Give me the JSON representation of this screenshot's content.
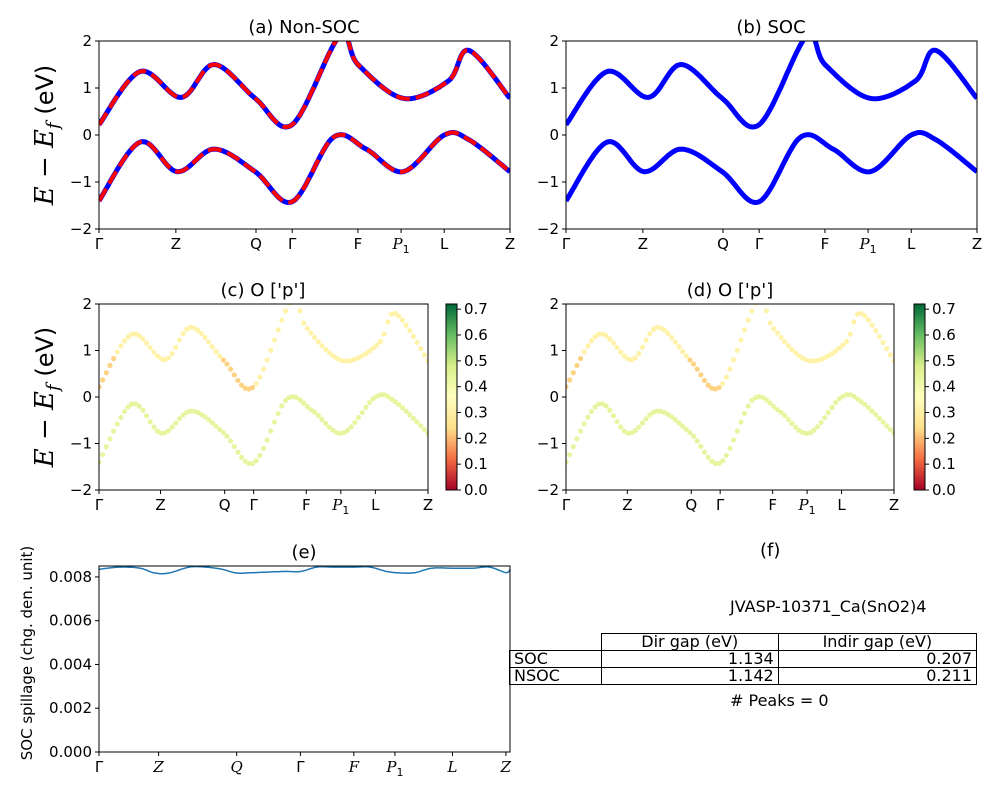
{
  "chart_data": [
    {
      "panel": "a",
      "type": "line",
      "title": "(a) Non-SOC",
      "ylabel": "E − E_f (eV)",
      "ylim": [
        -2,
        2
      ],
      "yticks": [
        "−2",
        "−1",
        "0",
        "1",
        "2"
      ],
      "xticks": [
        {
          "label": "Γ",
          "x": 0.0
        },
        {
          "label": "Z",
          "x": 0.187
        },
        {
          "label": "Q",
          "x": 0.382
        },
        {
          "label": "Γ",
          "x": 0.47
        },
        {
          "label": "F",
          "x": 0.63
        },
        {
          "label": "P",
          "sub": "1",
          "x": 0.735
        },
        {
          "label": "L",
          "x": 0.84
        },
        {
          "label": "Z",
          "x": 1.0
        }
      ],
      "series": [
        {
          "color": "#0000ff",
          "style": "solid",
          "x": [
            0,
            0.1,
            0.2,
            0.28,
            0.38,
            0.47,
            0.585,
            0.63,
            0.74,
            0.85,
            0.9,
            1.0
          ],
          "values": [
            0.22,
            1.35,
            0.8,
            1.5,
            0.78,
            0.22,
            2.1,
            1.5,
            0.78,
            1.15,
            1.8,
            0.78
          ]
        },
        {
          "color": "#ff0000",
          "style": "dashed",
          "x": [
            0,
            0.1,
            0.2,
            0.28,
            0.38,
            0.47,
            0.585,
            0.63,
            0.74,
            0.85,
            0.9,
            1.0
          ],
          "values": [
            0.22,
            1.35,
            0.8,
            1.5,
            0.78,
            0.22,
            2.1,
            1.5,
            0.78,
            1.15,
            1.8,
            0.78
          ]
        },
        {
          "color": "#0000ff",
          "style": "solid",
          "x": [
            0,
            0.1,
            0.19,
            0.28,
            0.38,
            0.47,
            0.57,
            0.65,
            0.74,
            0.84,
            0.9,
            1.0
          ],
          "values": [
            -1.4,
            -0.15,
            -0.78,
            -0.3,
            -0.78,
            -1.42,
            -0.05,
            -0.3,
            -0.78,
            0.0,
            -0.1,
            -0.78
          ]
        },
        {
          "color": "#ff0000",
          "style": "dashed",
          "x": [
            0,
            0.1,
            0.19,
            0.28,
            0.38,
            0.47,
            0.57,
            0.65,
            0.74,
            0.84,
            0.9,
            1.0
          ],
          "values": [
            -1.4,
            -0.15,
            -0.78,
            -0.3,
            -0.78,
            -1.42,
            -0.05,
            -0.3,
            -0.78,
            0.0,
            -0.1,
            -0.78
          ]
        }
      ]
    },
    {
      "panel": "b",
      "type": "line",
      "title": "(b) SOC",
      "ylim": [
        -2,
        2
      ],
      "yticks": [
        "−2",
        "−1",
        "0",
        "1",
        "2"
      ],
      "xticks": [
        {
          "label": "Γ",
          "x": 0.0
        },
        {
          "label": "Z",
          "x": 0.187
        },
        {
          "label": "Q",
          "x": 0.382
        },
        {
          "label": "Γ",
          "x": 0.47
        },
        {
          "label": "F",
          "x": 0.63
        },
        {
          "label": "P",
          "sub": "1",
          "x": 0.735
        },
        {
          "label": "L",
          "x": 0.84
        },
        {
          "label": "Z",
          "x": 1.0
        }
      ],
      "series": [
        {
          "color": "#0000ff",
          "style": "solid",
          "x": [
            0,
            0.1,
            0.2,
            0.28,
            0.38,
            0.47,
            0.585,
            0.63,
            0.74,
            0.85,
            0.9,
            1.0
          ],
          "values": [
            0.22,
            1.35,
            0.8,
            1.5,
            0.78,
            0.22,
            2.1,
            1.5,
            0.78,
            1.15,
            1.8,
            0.78
          ]
        },
        {
          "color": "#0000ff",
          "style": "solid",
          "x": [
            0,
            0.1,
            0.19,
            0.28,
            0.38,
            0.47,
            0.57,
            0.65,
            0.74,
            0.84,
            0.9,
            1.0
          ],
          "values": [
            -1.4,
            -0.15,
            -0.78,
            -0.3,
            -0.78,
            -1.42,
            -0.05,
            -0.3,
            -0.78,
            0.0,
            -0.1,
            -0.78
          ]
        }
      ]
    },
    {
      "panel": "c",
      "type": "scatter",
      "title": "(c)  O ['p']",
      "ylabel": "E − E_f (eV)",
      "ylim": [
        -2,
        2
      ],
      "yticks": [
        "−2",
        "−1",
        "0",
        "1",
        "2"
      ],
      "xticks": [
        {
          "label": "Γ",
          "x": 0.0
        },
        {
          "label": "Z",
          "x": 0.187
        },
        {
          "label": "Q",
          "x": 0.382
        },
        {
          "label": "Γ",
          "x": 0.47
        },
        {
          "label": "F",
          "x": 0.63
        },
        {
          "label": "P",
          "sub": "1",
          "x": 0.735
        },
        {
          "label": "L",
          "x": 0.84
        },
        {
          "label": "Z",
          "x": 1.0
        }
      ],
      "colorbar": {
        "min": 0.0,
        "max": 0.7,
        "ticks": [
          "0.0",
          "0.1",
          "0.2",
          "0.3",
          "0.4",
          "0.5",
          "0.6",
          "0.7"
        ]
      },
      "series": [
        {
          "weight": 0.3,
          "x": [
            0,
            0.1,
            0.2,
            0.28,
            0.38,
            0.47,
            0.585,
            0.63,
            0.74,
            0.85,
            0.9,
            1.0
          ],
          "values": [
            0.22,
            1.35,
            0.8,
            1.5,
            0.78,
            0.22,
            2.1,
            1.5,
            0.78,
            1.15,
            1.8,
            0.78
          ]
        },
        {
          "weight": 0.42,
          "x": [
            0,
            0.1,
            0.19,
            0.28,
            0.38,
            0.47,
            0.57,
            0.65,
            0.74,
            0.84,
            0.9,
            1.0
          ],
          "values": [
            -1.4,
            -0.15,
            -0.78,
            -0.3,
            -0.78,
            -1.42,
            -0.05,
            -0.3,
            -0.78,
            0.0,
            -0.1,
            -0.78
          ]
        }
      ]
    },
    {
      "panel": "d",
      "type": "scatter",
      "title": "(d) O ['p']",
      "ylim": [
        -2,
        2
      ],
      "yticks": [
        "−2",
        "−1",
        "0",
        "1",
        "2"
      ],
      "xticks": [
        {
          "label": "Γ",
          "x": 0.0
        },
        {
          "label": "Z",
          "x": 0.187
        },
        {
          "label": "Q",
          "x": 0.382
        },
        {
          "label": "Γ",
          "x": 0.47
        },
        {
          "label": "F",
          "x": 0.63
        },
        {
          "label": "P",
          "sub": "1",
          "x": 0.735
        },
        {
          "label": "L",
          "x": 0.84
        },
        {
          "label": "Z",
          "x": 1.0
        }
      ],
      "colorbar": {
        "min": 0.0,
        "max": 0.7,
        "ticks": [
          "0.0",
          "0.1",
          "0.2",
          "0.3",
          "0.4",
          "0.5",
          "0.6",
          "0.7"
        ]
      },
      "series": [
        {
          "weight": 0.3,
          "x": [
            0,
            0.1,
            0.2,
            0.28,
            0.38,
            0.47,
            0.585,
            0.63,
            0.74,
            0.85,
            0.9,
            1.0
          ],
          "values": [
            0.22,
            1.35,
            0.8,
            1.5,
            0.78,
            0.22,
            2.1,
            1.5,
            0.78,
            1.15,
            1.8,
            0.78
          ]
        },
        {
          "weight": 0.42,
          "x": [
            0,
            0.1,
            0.19,
            0.28,
            0.38,
            0.47,
            0.57,
            0.65,
            0.74,
            0.84,
            0.9,
            1.0
          ],
          "values": [
            -1.4,
            -0.15,
            -0.78,
            -0.3,
            -0.78,
            -1.42,
            -0.05,
            -0.3,
            -0.78,
            0.0,
            -0.1,
            -0.78
          ]
        }
      ]
    },
    {
      "panel": "e",
      "type": "line",
      "title": "(e)",
      "ylabel": "SOC spillage (chg. den. unit)",
      "ylim": [
        0,
        0.0085
      ],
      "yticks": [
        "0.000",
        "0.002",
        "0.004",
        "0.006",
        "0.008"
      ],
      "ytick_values": [
        0,
        0.002,
        0.004,
        0.006,
        0.008
      ],
      "xticks": [
        {
          "label": "Γ",
          "x": 0.0,
          "italic": false
        },
        {
          "label": "Z",
          "x": 0.145,
          "italic": true
        },
        {
          "label": "Q",
          "x": 0.335,
          "italic": true
        },
        {
          "label": "Γ",
          "x": 0.49,
          "italic": false
        },
        {
          "label": "F",
          "x": 0.62,
          "italic": true
        },
        {
          "label": "P",
          "sub": "1",
          "x": 0.72,
          "italic": true
        },
        {
          "label": "L",
          "x": 0.86,
          "italic": true
        },
        {
          "label": "Z",
          "x": 0.99,
          "italic": true
        }
      ],
      "series": [
        {
          "color": "#1f77b4",
          "x": [
            0,
            0.05,
            0.1,
            0.135,
            0.17,
            0.22,
            0.26,
            0.3,
            0.335,
            0.38,
            0.45,
            0.49,
            0.53,
            0.57,
            0.62,
            0.66,
            0.7,
            0.735,
            0.77,
            0.81,
            0.86,
            0.91,
            0.95,
            0.99,
            1.0
          ],
          "values": [
            0.00835,
            0.00845,
            0.0084,
            0.00818,
            0.00818,
            0.00845,
            0.00845,
            0.00835,
            0.00818,
            0.0082,
            0.00825,
            0.00825,
            0.00845,
            0.00845,
            0.00845,
            0.00845,
            0.00825,
            0.00818,
            0.0082,
            0.0084,
            0.0084,
            0.0084,
            0.00845,
            0.0082,
            0.00835
          ]
        }
      ]
    }
  ],
  "panel_f": {
    "title": "(f)",
    "material": "JVASP-10371_Ca(SnO2)4",
    "table": {
      "headers": [
        "Dir gap (eV)",
        "Indir gap (eV)"
      ],
      "rows": [
        {
          "label": "SOC",
          "dir": "1.134",
          "indir": "0.207"
        },
        {
          "label": "NSOC",
          "dir": "1.142",
          "indir": "0.211"
        }
      ]
    },
    "peaks": "# Peaks = 0"
  },
  "colors": {
    "colormap": [
      "#a50026",
      "#f46d43",
      "#fee08b",
      "#ffffbf",
      "#d9ef8b",
      "#66bd63",
      "#006837"
    ]
  }
}
